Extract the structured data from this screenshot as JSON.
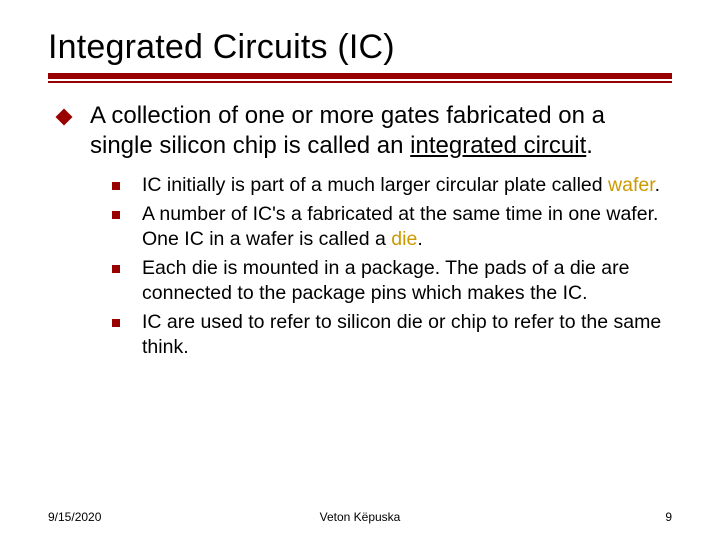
{
  "colors": {
    "accent": "#990000",
    "highlight": "#cc9900",
    "background": "#ffffff",
    "text": "#000000"
  },
  "typography": {
    "title_fontsize": 34,
    "body_fontsize": 24,
    "sub_fontsize": 19.5,
    "footer_fontsize": 12,
    "font_family": "Verdana"
  },
  "title": "Integrated Circuits (IC)",
  "main": {
    "text_pre": "A collection of one or more gates fabricated on a single silicon chip is called an ",
    "text_underlined": "integrated circuit",
    "text_post": "."
  },
  "subs": [
    {
      "pre": "IC initially is part of a much larger circular plate called ",
      "hl": "wafer",
      "post": "."
    },
    {
      "pre": "A number of IC's a fabricated at the same time in one wafer. One IC in a wafer is called a ",
      "hl": "die",
      "post": "."
    },
    {
      "pre": "Each die is mounted in a package. The pads of a die are connected to the package pins which makes the IC.",
      "hl": "",
      "post": ""
    },
    {
      "pre": "IC are used to refer to silicon die or chip to refer to the same think.",
      "hl": "",
      "post": ""
    }
  ],
  "footer": {
    "date": "9/15/2020",
    "author": "Veton Këpuska",
    "page": "9"
  }
}
